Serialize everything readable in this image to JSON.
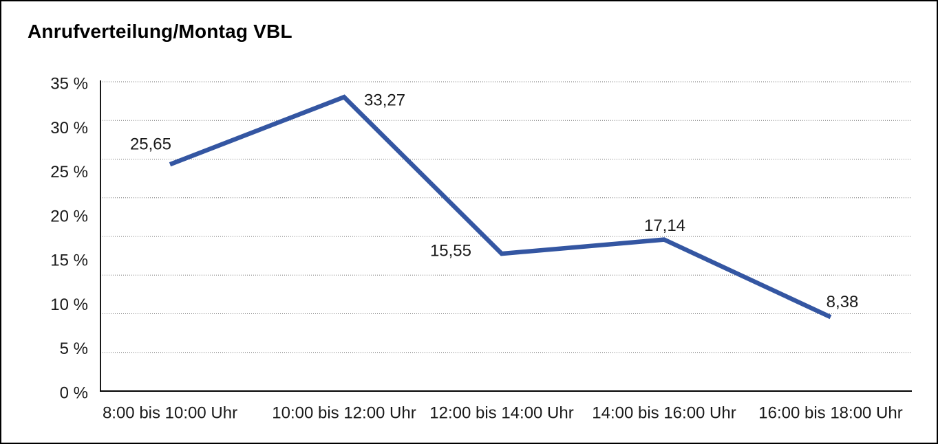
{
  "title": "Anrufverteilung/Montag VBL",
  "colors": {
    "line": "#3456A2",
    "grid_dots": "#6e6e6e",
    "axis": "#000000",
    "text": "#1a1a1a",
    "background": "#ffffff",
    "frame_border": "#000000"
  },
  "chart_data": {
    "type": "line",
    "title": "Anrufverteilung/Montag VBL",
    "categories": [
      "8:00 bis 10:00 Uhr",
      "10:00 bis 12:00 Uhr",
      "12:00 bis 14:00 Uhr",
      "14:00 bis 16:00 Uhr",
      "16:00 bis 18:00 Uhr"
    ],
    "series": [
      {
        "name": "Anrufverteilung Montag VBL",
        "values": [
          25.65,
          33.27,
          15.55,
          17.14,
          8.38
        ],
        "value_labels": [
          "25,65",
          "33,27",
          "15,55",
          "17,14",
          "8,38"
        ]
      }
    ],
    "xlabel": "",
    "ylabel": "",
    "ylim": [
      0,
      35
    ],
    "ytick_step": 5,
    "ytick_suffix": " %",
    "ytick_labels": [
      "0 %",
      "5 %",
      "10 %",
      "15 %",
      "20 %",
      "25 %",
      "30 %",
      "35 %"
    ],
    "grid": "horizontal dotted, 8 equal divisions",
    "legend": "none",
    "decimal_separator": ","
  }
}
